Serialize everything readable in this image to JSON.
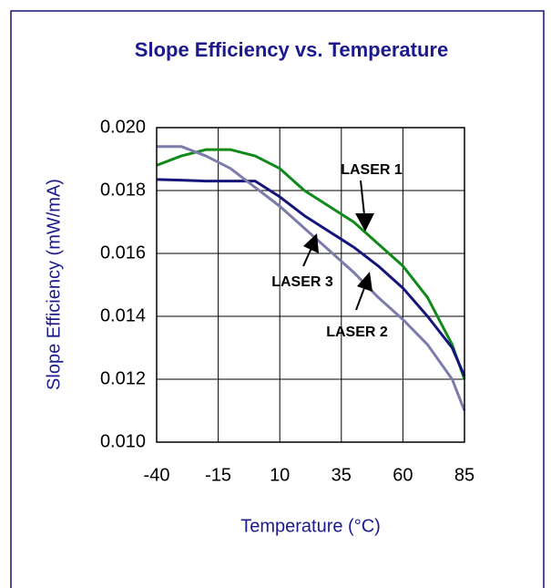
{
  "chart_data": {
    "type": "line",
    "title": "Slope Efficiency vs. Temperature",
    "x_label": "Temperature (°C)",
    "y_label": "Slope Efficiency (mW/mA)",
    "x": [
      -40,
      -30,
      -20,
      -10,
      0,
      10,
      20,
      30,
      40,
      50,
      60,
      70,
      80,
      85
    ],
    "series": [
      {
        "name": "LASER 1",
        "color": "#0f8a1a",
        "values": [
          0.0188,
          0.0191,
          0.0193,
          0.0193,
          0.0191,
          0.0187,
          0.018,
          0.0175,
          0.017,
          0.0163,
          0.0156,
          0.0146,
          0.0131,
          0.012
        ]
      },
      {
        "name": "LASER 2",
        "color": "#14147a",
        "values": [
          0.01835,
          0.01833,
          0.0183,
          0.0183,
          0.0183,
          0.0178,
          0.0172,
          0.0167,
          0.0162,
          0.0156,
          0.0149,
          0.014,
          0.013,
          0.0121
        ]
      },
      {
        "name": "LASER 3",
        "color": "#7c7caa",
        "values": [
          0.0194,
          0.0194,
          0.0191,
          0.0187,
          0.0181,
          0.0175,
          0.0168,
          0.0161,
          0.0154,
          0.0146,
          0.0139,
          0.0131,
          0.012,
          0.011
        ]
      }
    ],
    "xlim": [
      -40,
      85
    ],
    "xticks": [
      -40,
      -15,
      10,
      35,
      60,
      85
    ],
    "ylim": [
      0.01,
      0.02
    ],
    "yticks": [
      {
        "value": 0.01,
        "label": "0.010"
      },
      0.012,
      0.014,
      0.016,
      0.018,
      {
        "value": 0.02,
        "label": "0.020"
      }
    ],
    "grid": true
  }
}
